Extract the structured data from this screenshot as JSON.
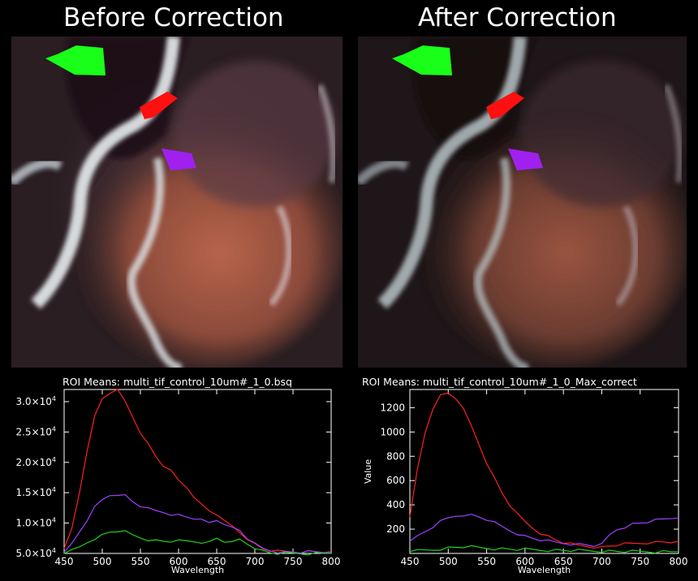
{
  "titles": {
    "left": "Before Correction",
    "right": "After Correction"
  },
  "roi_colors": {
    "green": "#19ff19",
    "red": "#ff1010",
    "purple": "#a020f0"
  },
  "chart_data": [
    {
      "type": "line",
      "title": "ROI Means: multi_tif_control_10um#_1_0.bsq",
      "xlabel": "Wavelength",
      "ylabel": "",
      "xlim": [
        450,
        800
      ],
      "ylim": [
        5000,
        32000
      ],
      "xticks": [
        "450",
        "500",
        "550",
        "600",
        "650",
        "700",
        "750",
        "800"
      ],
      "ytick_values": [
        5000,
        10000,
        15000,
        20000,
        25000,
        30000
      ],
      "yticks": [
        "5.0×10",
        "1.0×10",
        "1.5×10",
        "2.0×10",
        "2.5×10",
        "3.0×10"
      ],
      "ytick_exponent": "4",
      "x": [
        450,
        460,
        470,
        480,
        490,
        500,
        510,
        520,
        530,
        540,
        550,
        560,
        570,
        580,
        590,
        600,
        610,
        620,
        630,
        640,
        650,
        660,
        670,
        680,
        690,
        700,
        710,
        720,
        730,
        740,
        750,
        760,
        770,
        780,
        790,
        800
      ],
      "series": [
        {
          "color": "#ff2020",
          "values": [
            5800,
            9000,
            15000,
            22000,
            27500,
            30500,
            31500,
            31800,
            30000,
            27500,
            25000,
            23000,
            21000,
            19500,
            18500,
            17000,
            16000,
            14500,
            13000,
            12000,
            11500,
            10200,
            9500,
            8500,
            7500,
            6500,
            5800,
            5500,
            5300,
            5300,
            5300,
            5300,
            5300,
            5300,
            5300,
            5300
          ]
        },
        {
          "color": "#a040ff",
          "values": [
            5200,
            6500,
            8500,
            10500,
            12500,
            13800,
            14600,
            14800,
            14500,
            13500,
            12800,
            12300,
            12000,
            11800,
            11500,
            11300,
            11000,
            10800,
            10400,
            10000,
            10500,
            10000,
            9200,
            8800,
            7500,
            6500,
            5800,
            5500,
            5300,
            5200,
            5200,
            5200,
            5200,
            5200,
            5200,
            5200
          ]
        },
        {
          "color": "#20d020",
          "values": [
            5000,
            5400,
            6000,
            6800,
            7500,
            8000,
            8500,
            8700,
            8500,
            8000,
            7600,
            7300,
            7100,
            7000,
            7000,
            7000,
            7000,
            7000,
            6900,
            6800,
            7500,
            7000,
            6700,
            7300,
            6600,
            6000,
            5400,
            5100,
            5000,
            5000,
            5000,
            5000,
            5000,
            5000,
            5000,
            5000
          ]
        }
      ]
    },
    {
      "type": "line",
      "title": "ROI Means: multi_tif_control_10um#_1_0_Max_correct",
      "xlabel": "Wavelength",
      "ylabel": "Value",
      "xlim": [
        450,
        800
      ],
      "ylim": [
        0,
        1350
      ],
      "xticks": [
        "450",
        "500",
        "550",
        "600",
        "650",
        "700",
        "750",
        "800"
      ],
      "ytick_values": [
        200,
        400,
        600,
        800,
        1000,
        1200
      ],
      "yticks": [
        "200",
        "400",
        "600",
        "800",
        "1000",
        "1200"
      ],
      "x": [
        450,
        460,
        470,
        480,
        490,
        500,
        510,
        520,
        530,
        540,
        550,
        560,
        570,
        580,
        590,
        600,
        610,
        620,
        630,
        640,
        650,
        660,
        670,
        680,
        690,
        700,
        710,
        720,
        730,
        740,
        750,
        760,
        770,
        780,
        790,
        800
      ],
      "series": [
        {
          "color": "#ff2020",
          "values": [
            300,
            700,
            1000,
            1200,
            1300,
            1320,
            1280,
            1180,
            1050,
            900,
            750,
            620,
            500,
            400,
            320,
            260,
            210,
            170,
            140,
            110,
            90,
            75,
            65,
            60,
            55,
            50,
            60,
            70,
            75,
            80,
            85,
            90,
            90,
            95,
            95,
            100
          ]
        },
        {
          "color": "#a040ff",
          "values": [
            100,
            140,
            180,
            220,
            260,
            290,
            310,
            320,
            315,
            300,
            280,
            250,
            220,
            190,
            165,
            140,
            125,
            110,
            100,
            90,
            85,
            80,
            75,
            70,
            65,
            70,
            150,
            200,
            220,
            240,
            250,
            260,
            270,
            280,
            290,
            290
          ]
        },
        {
          "color": "#20d020",
          "values": [
            15,
            20,
            25,
            30,
            38,
            45,
            50,
            55,
            52,
            48,
            44,
            40,
            38,
            35,
            33,
            32,
            30,
            28,
            27,
            26,
            25,
            24,
            23,
            22,
            21,
            20,
            18,
            17,
            16,
            15,
            15,
            15,
            15,
            15,
            15,
            15
          ]
        }
      ]
    }
  ]
}
